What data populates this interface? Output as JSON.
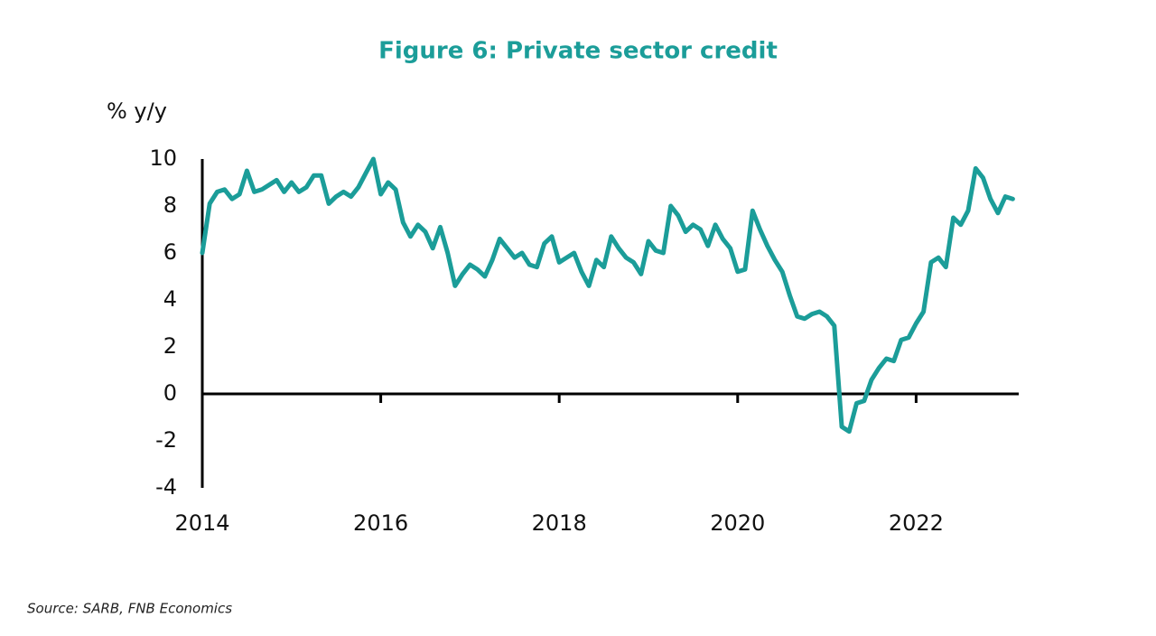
{
  "chart_data": {
    "type": "line",
    "title": "Figure 6: Private sector credit",
    "y_label": "% y/y",
    "source": "Source: SARB, FNB Economics",
    "color": "#1b9d99",
    "xlim": [
      2014,
      2023.15
    ],
    "xticks": [
      2014,
      2016,
      2018,
      2020,
      2022
    ],
    "ylim": [
      -4,
      10
    ],
    "yticks": [
      -4,
      -2,
      0,
      2,
      4,
      6,
      8,
      10
    ],
    "x": [
      2014,
      2014.083,
      2014.167,
      2014.25,
      2014.333,
      2014.417,
      2014.5,
      2014.583,
      2014.667,
      2014.75,
      2014.833,
      2014.917,
      2015,
      2015.083,
      2015.167,
      2015.25,
      2015.333,
      2015.417,
      2015.5,
      2015.583,
      2015.667,
      2015.75,
      2015.833,
      2015.917,
      2016,
      2016.083,
      2016.167,
      2016.25,
      2016.333,
      2016.417,
      2016.5,
      2016.583,
      2016.667,
      2016.75,
      2016.833,
      2016.917,
      2017,
      2017.083,
      2017.167,
      2017.25,
      2017.333,
      2017.417,
      2017.5,
      2017.583,
      2017.667,
      2017.75,
      2017.833,
      2017.917,
      2018,
      2018.083,
      2018.167,
      2018.25,
      2018.333,
      2018.417,
      2018.5,
      2018.583,
      2018.667,
      2018.75,
      2018.833,
      2018.917,
      2019,
      2019.083,
      2019.167,
      2019.25,
      2019.333,
      2019.417,
      2019.5,
      2019.583,
      2019.667,
      2019.75,
      2019.833,
      2019.917,
      2020,
      2020.083,
      2020.167,
      2020.25,
      2020.333,
      2020.417,
      2020.5,
      2020.583,
      2020.667,
      2020.75,
      2020.833,
      2020.917,
      2021,
      2021.083,
      2021.167,
      2021.25,
      2021.333,
      2021.417,
      2021.5,
      2021.583,
      2021.667,
      2021.75,
      2021.833,
      2021.917,
      2022,
      2022.083,
      2022.167,
      2022.25,
      2022.333,
      2022.417,
      2022.5,
      2022.583,
      2022.667,
      2022.75,
      2022.833,
      2022.917,
      2023,
      2023.083
    ],
    "values": [
      6.0,
      8.1,
      8.6,
      8.7,
      8.3,
      8.5,
      9.5,
      8.6,
      8.7,
      8.9,
      9.1,
      8.6,
      9.0,
      8.6,
      8.8,
      9.3,
      9.3,
      8.1,
      8.4,
      8.6,
      8.4,
      8.8,
      9.4,
      10.0,
      8.5,
      9.0,
      8.7,
      7.3,
      6.7,
      7.2,
      6.9,
      6.2,
      7.1,
      6.0,
      4.6,
      5.1,
      5.5,
      5.3,
      5.0,
      5.7,
      6.6,
      6.2,
      5.8,
      6.0,
      5.5,
      5.4,
      6.4,
      6.7,
      5.6,
      5.8,
      6.0,
      5.2,
      4.6,
      5.7,
      5.4,
      6.7,
      6.2,
      5.8,
      5.6,
      5.1,
      6.5,
      6.1,
      6.0,
      8.0,
      7.6,
      6.9,
      7.2,
      7.0,
      6.3,
      7.2,
      6.6,
      6.2,
      5.2,
      5.3,
      7.8,
      7.0,
      6.3,
      5.7,
      5.2,
      4.2,
      3.3,
      3.2,
      3.4,
      3.5,
      3.3,
      2.9,
      -1.4,
      -1.6,
      -0.4,
      -0.3,
      0.6,
      1.1,
      1.5,
      1.4,
      2.3,
      2.4,
      3.0,
      3.5,
      5.6,
      5.8,
      5.4,
      7.5,
      7.2,
      7.8,
      9.6,
      9.2,
      8.3,
      7.7,
      8.4,
      8.3
    ]
  }
}
